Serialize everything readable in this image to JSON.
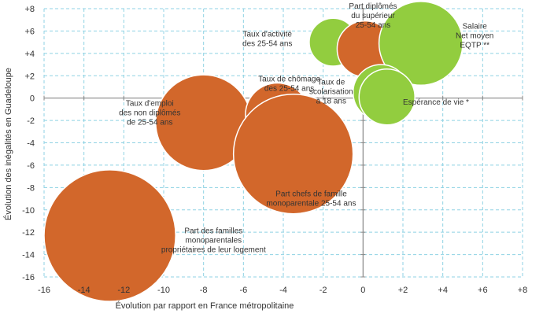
{
  "chart_data": {
    "type": "scatter",
    "xlabel": "Évolution par rapport en France métropolitaine",
    "ylabel": "Évolution des inégalités en Guadeloupe",
    "xlim": [
      -16,
      8
    ],
    "ylim": [
      -16,
      8
    ],
    "grid": "dashed",
    "x_ticks": [
      {
        "value": -16,
        "label": "-16"
      },
      {
        "value": -14,
        "label": "-14"
      },
      {
        "value": -12,
        "label": "-12"
      },
      {
        "value": -10,
        "label": "-10"
      },
      {
        "value": -8,
        "label": "-8"
      },
      {
        "value": -6,
        "label": "-6"
      },
      {
        "value": -4,
        "label": "-4"
      },
      {
        "value": -2,
        "label": "-2"
      },
      {
        "value": 0,
        "label": "0"
      },
      {
        "value": 2,
        "label": "+2"
      },
      {
        "value": 4,
        "label": "+4"
      },
      {
        "value": 6,
        "label": "+6"
      },
      {
        "value": 8,
        "label": "+8"
      }
    ],
    "y_ticks": [
      {
        "value": 8,
        "label": "+8"
      },
      {
        "value": 6,
        "label": "+6"
      },
      {
        "value": 4,
        "label": "+4"
      },
      {
        "value": 2,
        "label": "+2"
      },
      {
        "value": 0,
        "label": "0"
      },
      {
        "value": -2,
        "label": "-2"
      },
      {
        "value": -4,
        "label": "-4"
      },
      {
        "value": -6,
        "label": "-6"
      },
      {
        "value": -8,
        "label": "-8"
      },
      {
        "value": -10,
        "label": "-10"
      },
      {
        "value": -12,
        "label": "-12"
      },
      {
        "value": -14,
        "label": "-14"
      },
      {
        "value": -16,
        "label": "-16"
      }
    ],
    "colors": {
      "orange": "#d2672b",
      "green": "#92cd3f",
      "grid": "#8fd2e4",
      "axis": "#888888"
    },
    "points": [
      {
        "name": "emploi-non-diplomes",
        "x": -8,
        "y": -2.2,
        "size": 2.4,
        "color": "orange",
        "label_lines": [
          "Taux d'emploi",
          "des non diplômés",
          "de 25-54 ans"
        ],
        "label_anchor": "middle",
        "label_x": -10.7,
        "label_y": -0.7
      },
      {
        "name": "chomage",
        "x": -4.3,
        "y": -1.5,
        "size": 1.6,
        "color": "orange",
        "label_lines": [
          "Taux de chômage",
          "des 25-54 ans"
        ],
        "label_anchor": "middle",
        "label_x": -3.7,
        "label_y": 1.5
      },
      {
        "name": "chefs-famille-monoparentale",
        "x": -3.5,
        "y": -5,
        "size": 3.0,
        "color": "orange",
        "label_lines": [
          "Part chefs de famille",
          "monoparentale 25-54 ans"
        ],
        "label_anchor": "middle",
        "label_x": -2.6,
        "label_y": -8.8
      },
      {
        "name": "familles-monoparentales-proprietaires",
        "x": -12.7,
        "y": -12.3,
        "size": 3.3,
        "color": "orange",
        "label_lines": [
          "Part des familles",
          "monoparentales",
          "propriétaires de leur logement"
        ],
        "label_anchor": "middle",
        "label_x": -7.5,
        "label_y": -12.1
      },
      {
        "name": "activite",
        "x": -1.5,
        "y": 5,
        "size": 1.2,
        "color": "green",
        "label_lines": [
          "Taux d'activité",
          "des 25-54 ans"
        ],
        "label_anchor": "middle",
        "label_x": -4.8,
        "label_y": 5.5
      },
      {
        "name": "diplomes-superieur",
        "x": 0.1,
        "y": 4.4,
        "size": 1.4,
        "color": "orange",
        "label_lines": [
          "Part diplômés",
          "du supérieur",
          "25-54 ans"
        ],
        "label_anchor": "middle",
        "label_x": 0.5,
        "label_y": 8
      },
      {
        "name": "salaire",
        "x": 2.9,
        "y": 4.9,
        "size": 2.1,
        "color": "green",
        "label_lines": [
          "Salaire",
          "Net moyen",
          "EQTP **"
        ],
        "label_anchor": "middle",
        "label_x": 5.6,
        "label_y": 6.2
      },
      {
        "name": "scolarisation",
        "x": 0.9,
        "y": 0.5,
        "size": 1.4,
        "color": "green",
        "label_lines": [
          "Taux de",
          "scolarisation",
          "à 18 ans"
        ],
        "label_anchor": "middle",
        "label_x": -1.6,
        "label_y": 1.2
      },
      {
        "name": "esperance-vie",
        "x": 1.2,
        "y": 0.1,
        "size": 1.4,
        "color": "green",
        "label_lines": [
          "Espérance de vie *"
        ],
        "label_anchor": "start",
        "label_x": 2,
        "label_y": -0.6
      }
    ]
  }
}
